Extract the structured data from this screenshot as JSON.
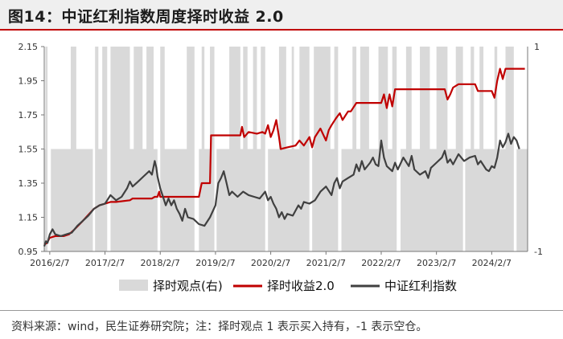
{
  "header": {
    "title": "图14：中证红利指数周度择时收益 2.0"
  },
  "footnote": "资料来源：wind，民生证券研究院；注：择时观点 1 表示买入持有，-1 表示空仓。",
  "colors": {
    "timing_return": "#c00000",
    "index": "#404040",
    "signal_band": "#d9d9d9",
    "title_rule": "#c00000"
  },
  "chart_data": {
    "type": "line",
    "title": "",
    "x_tick_labels": [
      "2016/2/7",
      "2017/2/7",
      "2018/2/7",
      "2019/2/7",
      "2020/2/7",
      "2021/2/7",
      "2022/2/7",
      "2023/2/7",
      "2024/2/7"
    ],
    "x_range": [
      2016.0,
      2024.75
    ],
    "y_left": {
      "ticks": [
        "2.15",
        "1.95",
        "1.75",
        "1.55",
        "1.35",
        "1.15",
        "0.95"
      ],
      "range": [
        0.95,
        2.15
      ]
    },
    "y_right": {
      "ticks": [
        "1",
        "-1"
      ],
      "range": [
        -1,
        1
      ]
    },
    "legend": [
      "择时观点(右)",
      "择时收益2.0",
      "中证红利指数"
    ],
    "signal_periods_on": [
      [
        2016.02,
        2016.06
      ],
      [
        2016.48,
        2016.58
      ],
      [
        2016.92,
        2016.98
      ],
      [
        2017.05,
        2017.14
      ],
      [
        2017.2,
        2017.55
      ],
      [
        2017.62,
        2017.78
      ],
      [
        2017.85,
        2017.98
      ],
      [
        2018.1,
        2018.18
      ],
      [
        2018.58,
        2018.72
      ],
      [
        2018.85,
        2018.9
      ],
      [
        2019.0,
        2019.08
      ],
      [
        2019.35,
        2019.55
      ],
      [
        2019.6,
        2019.68
      ],
      [
        2019.78,
        2019.85
      ],
      [
        2019.92,
        2020.0
      ],
      [
        2020.25,
        2020.38
      ],
      [
        2020.48,
        2020.52
      ],
      [
        2020.62,
        2020.8
      ],
      [
        2020.88,
        2021.18
      ],
      [
        2021.25,
        2021.32
      ],
      [
        2021.58,
        2021.65
      ],
      [
        2021.72,
        2021.88
      ],
      [
        2022.05,
        2022.22
      ],
      [
        2022.3,
        2022.38
      ],
      [
        2022.55,
        2022.65
      ],
      [
        2022.8,
        2022.98
      ],
      [
        2023.1,
        2023.3
      ],
      [
        2023.45,
        2023.58
      ],
      [
        2023.72,
        2023.78
      ],
      [
        2023.88,
        2023.95
      ],
      [
        2024.15,
        2024.2
      ],
      [
        2024.35,
        2024.5
      ]
    ],
    "series": [
      {
        "name": "择时收益2.0",
        "points": [
          [
            2016.0,
            0.99
          ],
          [
            2016.05,
            1.0
          ],
          [
            2016.1,
            1.03
          ],
          [
            2016.2,
            1.04
          ],
          [
            2016.35,
            1.04
          ],
          [
            2016.45,
            1.05
          ],
          [
            2016.55,
            1.08
          ],
          [
            2016.7,
            1.13
          ],
          [
            2016.9,
            1.2
          ],
          [
            2017.0,
            1.22
          ],
          [
            2017.2,
            1.24
          ],
          [
            2017.3,
            1.24
          ],
          [
            2017.55,
            1.25
          ],
          [
            2017.6,
            1.26
          ],
          [
            2017.75,
            1.26
          ],
          [
            2017.85,
            1.26
          ],
          [
            2017.95,
            1.26
          ],
          [
            2018.0,
            1.27
          ],
          [
            2018.05,
            1.27
          ],
          [
            2018.08,
            1.3
          ],
          [
            2018.1,
            1.27
          ],
          [
            2018.2,
            1.27
          ],
          [
            2018.5,
            1.27
          ],
          [
            2018.7,
            1.27
          ],
          [
            2018.8,
            1.27
          ],
          [
            2018.85,
            1.35
          ],
          [
            2019.0,
            1.35
          ],
          [
            2019.02,
            1.63
          ],
          [
            2019.3,
            1.63
          ],
          [
            2019.55,
            1.63
          ],
          [
            2019.58,
            1.68
          ],
          [
            2019.62,
            1.62
          ],
          [
            2019.7,
            1.65
          ],
          [
            2019.85,
            1.64
          ],
          [
            2019.95,
            1.65
          ],
          [
            2020.0,
            1.64
          ],
          [
            2020.05,
            1.69
          ],
          [
            2020.1,
            1.62
          ],
          [
            2020.15,
            1.66
          ],
          [
            2020.2,
            1.72
          ],
          [
            2020.25,
            1.62
          ],
          [
            2020.28,
            1.55
          ],
          [
            2020.4,
            1.56
          ],
          [
            2020.55,
            1.57
          ],
          [
            2020.62,
            1.6
          ],
          [
            2020.7,
            1.57
          ],
          [
            2020.8,
            1.62
          ],
          [
            2020.85,
            1.56
          ],
          [
            2020.9,
            1.62
          ],
          [
            2021.0,
            1.67
          ],
          [
            2021.1,
            1.6
          ],
          [
            2021.15,
            1.66
          ],
          [
            2021.2,
            1.69
          ],
          [
            2021.28,
            1.73
          ],
          [
            2021.35,
            1.76
          ],
          [
            2021.4,
            1.72
          ],
          [
            2021.5,
            1.77
          ],
          [
            2021.55,
            1.77
          ],
          [
            2021.65,
            1.82
          ],
          [
            2021.8,
            1.82
          ],
          [
            2021.9,
            1.82
          ],
          [
            2022.0,
            1.82
          ],
          [
            2022.1,
            1.82
          ],
          [
            2022.15,
            1.87
          ],
          [
            2022.2,
            1.79
          ],
          [
            2022.25,
            1.87
          ],
          [
            2022.3,
            1.8
          ],
          [
            2022.35,
            1.9
          ],
          [
            2022.6,
            1.9
          ],
          [
            2022.8,
            1.9
          ],
          [
            2022.95,
            1.9
          ],
          [
            2023.0,
            1.9
          ],
          [
            2023.1,
            1.9
          ],
          [
            2023.25,
            1.9
          ],
          [
            2023.3,
            1.84
          ],
          [
            2023.35,
            1.87
          ],
          [
            2023.4,
            1.91
          ],
          [
            2023.5,
            1.93
          ],
          [
            2023.75,
            1.93
          ],
          [
            2023.8,
            1.93
          ],
          [
            2023.85,
            1.89
          ],
          [
            2023.9,
            1.89
          ],
          [
            2024.0,
            1.89
          ],
          [
            2024.1,
            1.89
          ],
          [
            2024.15,
            1.85
          ],
          [
            2024.2,
            1.95
          ],
          [
            2024.25,
            2.02
          ],
          [
            2024.3,
            1.96
          ],
          [
            2024.35,
            2.02
          ],
          [
            2024.4,
            2.02
          ],
          [
            2024.55,
            2.02
          ],
          [
            2024.7,
            2.02
          ]
        ]
      },
      {
        "name": "中证红利指数",
        "points": [
          [
            2016.0,
            0.98
          ],
          [
            2016.03,
            1.01
          ],
          [
            2016.06,
            1.0
          ],
          [
            2016.1,
            1.05
          ],
          [
            2016.15,
            1.08
          ],
          [
            2016.2,
            1.05
          ],
          [
            2016.3,
            1.04
          ],
          [
            2016.4,
            1.05
          ],
          [
            2016.5,
            1.06
          ],
          [
            2016.6,
            1.1
          ],
          [
            2016.7,
            1.13
          ],
          [
            2016.8,
            1.16
          ],
          [
            2016.9,
            1.2
          ],
          [
            2017.0,
            1.22
          ],
          [
            2017.1,
            1.23
          ],
          [
            2017.2,
            1.28
          ],
          [
            2017.3,
            1.25
          ],
          [
            2017.4,
            1.27
          ],
          [
            2017.5,
            1.32
          ],
          [
            2017.55,
            1.36
          ],
          [
            2017.6,
            1.33
          ],
          [
            2017.7,
            1.36
          ],
          [
            2017.8,
            1.39
          ],
          [
            2017.9,
            1.42
          ],
          [
            2017.95,
            1.4
          ],
          [
            2018.0,
            1.48
          ],
          [
            2018.03,
            1.44
          ],
          [
            2018.05,
            1.39
          ],
          [
            2018.1,
            1.32
          ],
          [
            2018.15,
            1.27
          ],
          [
            2018.2,
            1.22
          ],
          [
            2018.25,
            1.26
          ],
          [
            2018.3,
            1.22
          ],
          [
            2018.35,
            1.25
          ],
          [
            2018.4,
            1.2
          ],
          [
            2018.45,
            1.17
          ],
          [
            2018.5,
            1.13
          ],
          [
            2018.55,
            1.2
          ],
          [
            2018.6,
            1.15
          ],
          [
            2018.7,
            1.14
          ],
          [
            2018.8,
            1.11
          ],
          [
            2018.9,
            1.1
          ],
          [
            2019.0,
            1.15
          ],
          [
            2019.1,
            1.22
          ],
          [
            2019.15,
            1.35
          ],
          [
            2019.2,
            1.38
          ],
          [
            2019.25,
            1.42
          ],
          [
            2019.3,
            1.35
          ],
          [
            2019.35,
            1.28
          ],
          [
            2019.4,
            1.3
          ],
          [
            2019.5,
            1.27
          ],
          [
            2019.6,
            1.3
          ],
          [
            2019.7,
            1.28
          ],
          [
            2019.8,
            1.27
          ],
          [
            2019.9,
            1.26
          ],
          [
            2020.0,
            1.3
          ],
          [
            2020.05,
            1.25
          ],
          [
            2020.1,
            1.27
          ],
          [
            2020.15,
            1.23
          ],
          [
            2020.2,
            1.2
          ],
          [
            2020.25,
            1.15
          ],
          [
            2020.3,
            1.18
          ],
          [
            2020.35,
            1.14
          ],
          [
            2020.4,
            1.17
          ],
          [
            2020.5,
            1.16
          ],
          [
            2020.6,
            1.22
          ],
          [
            2020.65,
            1.2
          ],
          [
            2020.7,
            1.24
          ],
          [
            2020.8,
            1.23
          ],
          [
            2020.9,
            1.25
          ],
          [
            2021.0,
            1.3
          ],
          [
            2021.1,
            1.33
          ],
          [
            2021.2,
            1.28
          ],
          [
            2021.25,
            1.35
          ],
          [
            2021.3,
            1.38
          ],
          [
            2021.35,
            1.32
          ],
          [
            2021.4,
            1.36
          ],
          [
            2021.5,
            1.38
          ],
          [
            2021.6,
            1.4
          ],
          [
            2021.65,
            1.46
          ],
          [
            2021.7,
            1.42
          ],
          [
            2021.75,
            1.48
          ],
          [
            2021.8,
            1.43
          ],
          [
            2021.9,
            1.47
          ],
          [
            2021.95,
            1.5
          ],
          [
            2022.0,
            1.46
          ],
          [
            2022.05,
            1.45
          ],
          [
            2022.1,
            1.6
          ],
          [
            2022.15,
            1.5
          ],
          [
            2022.2,
            1.45
          ],
          [
            2022.3,
            1.42
          ],
          [
            2022.35,
            1.47
          ],
          [
            2022.4,
            1.43
          ],
          [
            2022.5,
            1.5
          ],
          [
            2022.6,
            1.45
          ],
          [
            2022.65,
            1.51
          ],
          [
            2022.7,
            1.43
          ],
          [
            2022.8,
            1.4
          ],
          [
            2022.9,
            1.42
          ],
          [
            2022.95,
            1.38
          ],
          [
            2023.0,
            1.44
          ],
          [
            2023.1,
            1.47
          ],
          [
            2023.2,
            1.5
          ],
          [
            2023.25,
            1.54
          ],
          [
            2023.3,
            1.47
          ],
          [
            2023.35,
            1.49
          ],
          [
            2023.4,
            1.46
          ],
          [
            2023.5,
            1.52
          ],
          [
            2023.6,
            1.48
          ],
          [
            2023.7,
            1.5
          ],
          [
            2023.8,
            1.51
          ],
          [
            2023.85,
            1.46
          ],
          [
            2023.9,
            1.48
          ],
          [
            2024.0,
            1.43
          ],
          [
            2024.05,
            1.42
          ],
          [
            2024.1,
            1.45
          ],
          [
            2024.15,
            1.44
          ],
          [
            2024.2,
            1.5
          ],
          [
            2024.25,
            1.6
          ],
          [
            2024.3,
            1.56
          ],
          [
            2024.35,
            1.59
          ],
          [
            2024.4,
            1.64
          ],
          [
            2024.45,
            1.58
          ],
          [
            2024.5,
            1.62
          ],
          [
            2024.55,
            1.6
          ],
          [
            2024.6,
            1.55
          ]
        ]
      }
    ]
  }
}
